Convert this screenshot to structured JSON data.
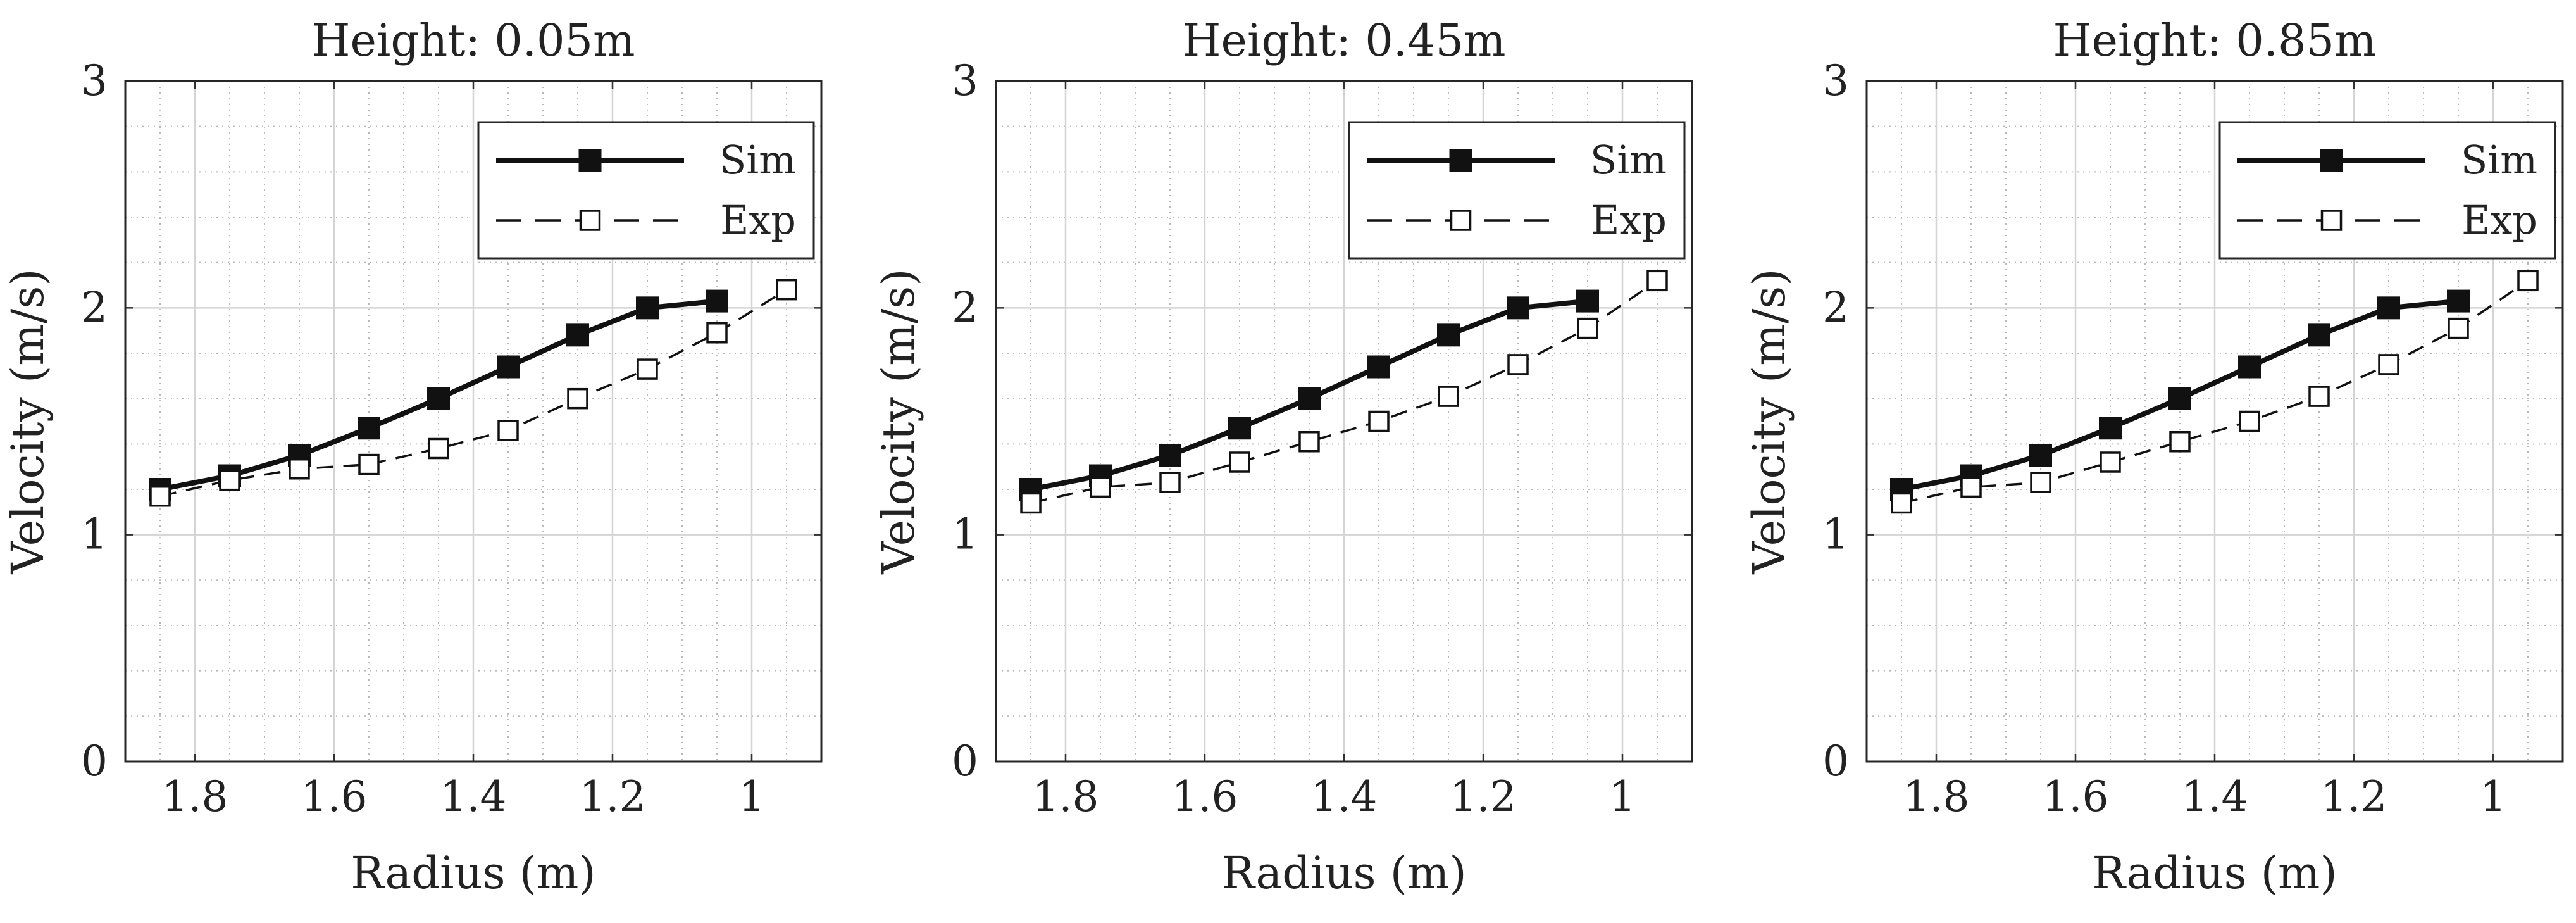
{
  "chart_data": [
    {
      "type": "line",
      "title": "Height: 0.05m",
      "xlabel": "Radius (m)",
      "ylabel": "Velocity (m/s)",
      "xlim": [
        1.9,
        0.9
      ],
      "x_reversed": true,
      "ylim": [
        0,
        3
      ],
      "xticks": [
        1.8,
        1.6,
        1.4,
        1.2,
        1
      ],
      "xtick_labels": [
        "1.8",
        "1.6",
        "1.4",
        "1.2",
        "1"
      ],
      "yticks": [
        0,
        1,
        2,
        3
      ],
      "ytick_labels": [
        "0",
        "1",
        "2",
        "3"
      ],
      "grid": true,
      "minor_grid": true,
      "legend_position": "top-right",
      "series": [
        {
          "name": "Sim",
          "style": "solid-filled-square",
          "x": [
            1.85,
            1.75,
            1.65,
            1.55,
            1.45,
            1.35,
            1.25,
            1.15,
            1.05
          ],
          "y": [
            1.2,
            1.26,
            1.35,
            1.47,
            1.6,
            1.74,
            1.88,
            2.0,
            2.03
          ]
        },
        {
          "name": "Exp",
          "style": "dashed-open-square",
          "x": [
            1.85,
            1.75,
            1.65,
            1.55,
            1.45,
            1.35,
            1.25,
            1.15,
            1.05,
            0.95
          ],
          "y": [
            1.17,
            1.24,
            1.29,
            1.31,
            1.38,
            1.46,
            1.6,
            1.73,
            1.89,
            2.08
          ]
        }
      ]
    },
    {
      "type": "line",
      "title": "Height: 0.45m",
      "xlabel": "Radius (m)",
      "ylabel": "Velocity (m/s)",
      "xlim": [
        1.9,
        0.9
      ],
      "x_reversed": true,
      "ylim": [
        0,
        3
      ],
      "xticks": [
        1.8,
        1.6,
        1.4,
        1.2,
        1
      ],
      "xtick_labels": [
        "1.8",
        "1.6",
        "1.4",
        "1.2",
        "1"
      ],
      "yticks": [
        0,
        1,
        2,
        3
      ],
      "ytick_labels": [
        "0",
        "1",
        "2",
        "3"
      ],
      "grid": true,
      "minor_grid": true,
      "legend_position": "top-right",
      "series": [
        {
          "name": "Sim",
          "style": "solid-filled-square",
          "x": [
            1.85,
            1.75,
            1.65,
            1.55,
            1.45,
            1.35,
            1.25,
            1.15,
            1.05
          ],
          "y": [
            1.2,
            1.26,
            1.35,
            1.47,
            1.6,
            1.74,
            1.88,
            2.0,
            2.03
          ]
        },
        {
          "name": "Exp",
          "style": "dashed-open-square",
          "x": [
            1.85,
            1.75,
            1.65,
            1.55,
            1.45,
            1.35,
            1.25,
            1.15,
            1.05,
            0.95
          ],
          "y": [
            1.14,
            1.21,
            1.23,
            1.32,
            1.41,
            1.5,
            1.61,
            1.75,
            1.91,
            2.12
          ]
        }
      ]
    },
    {
      "type": "line",
      "title": "Height: 0.85m",
      "xlabel": "Radius (m)",
      "ylabel": "Velocity (m/s)",
      "xlim": [
        1.9,
        0.9
      ],
      "x_reversed": true,
      "ylim": [
        0,
        3
      ],
      "xticks": [
        1.8,
        1.6,
        1.4,
        1.2,
        1
      ],
      "xtick_labels": [
        "1.8",
        "1.6",
        "1.4",
        "1.2",
        "1"
      ],
      "yticks": [
        0,
        1,
        2,
        3
      ],
      "ytick_labels": [
        "0",
        "1",
        "2",
        "3"
      ],
      "grid": true,
      "minor_grid": true,
      "legend_position": "top-right",
      "series": [
        {
          "name": "Sim",
          "style": "solid-filled-square",
          "x": [
            1.85,
            1.75,
            1.65,
            1.55,
            1.45,
            1.35,
            1.25,
            1.15,
            1.05
          ],
          "y": [
            1.2,
            1.26,
            1.35,
            1.47,
            1.6,
            1.74,
            1.88,
            2.0,
            2.03
          ]
        },
        {
          "name": "Exp",
          "style": "dashed-open-square",
          "x": [
            1.85,
            1.75,
            1.65,
            1.55,
            1.45,
            1.35,
            1.25,
            1.15,
            1.05,
            0.95
          ],
          "y": [
            1.14,
            1.21,
            1.23,
            1.32,
            1.41,
            1.5,
            1.61,
            1.75,
            1.91,
            2.12
          ]
        }
      ]
    }
  ]
}
